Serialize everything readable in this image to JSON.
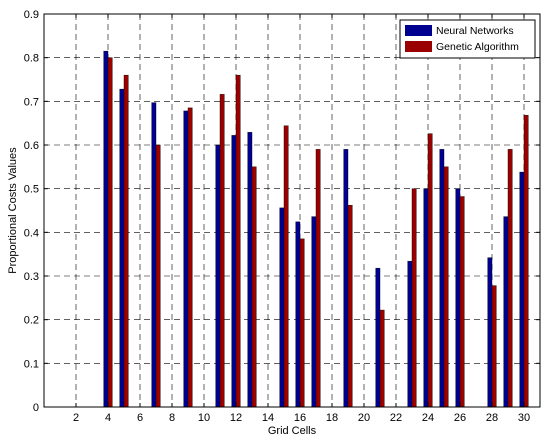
{
  "chart_data": {
    "type": "bar",
    "xlabel": "Grid Cells",
    "ylabel": "Proportional Costs Values",
    "xlim": [
      0,
      31
    ],
    "ylim": [
      0,
      0.9
    ],
    "xticks": [
      2,
      4,
      6,
      8,
      10,
      12,
      14,
      16,
      18,
      20,
      22,
      24,
      26,
      28,
      30
    ],
    "yticks": [
      0,
      0.1,
      0.2,
      0.3,
      0.4,
      0.5,
      0.6,
      0.7,
      0.8,
      0.9
    ],
    "xtick_labels": [
      "2",
      "4",
      "6",
      "8",
      "10",
      "12",
      "14",
      "16",
      "18",
      "20",
      "22",
      "24",
      "26",
      "28",
      "30"
    ],
    "ytick_labels": [
      "0",
      "0.1",
      "0.2",
      "0.3",
      "0.4",
      "0.5",
      "0.6",
      "0.7",
      "0.8",
      "0.9"
    ],
    "grid": true,
    "legend_position": "top-right",
    "x": [
      4,
      5,
      7,
      9,
      11,
      12,
      13,
      15,
      16,
      17,
      19,
      21,
      23,
      24,
      25,
      26,
      28,
      29,
      30
    ],
    "series": [
      {
        "name": "Neural Networks",
        "color": "#000090",
        "values": [
          0.815,
          0.728,
          0.697,
          0.678,
          0.6,
          0.622,
          0.629,
          0.456,
          0.424,
          0.436,
          0.59,
          0.318,
          0.334,
          0.5,
          0.59,
          0.5,
          0.342,
          0.436,
          0.538
        ]
      },
      {
        "name": "Genetic Algorithm",
        "color": "#9a0000",
        "values": [
          0.8,
          0.76,
          0.6,
          0.685,
          0.716,
          0.76,
          0.55,
          0.644,
          0.385,
          0.59,
          0.462,
          0.222,
          0.5,
          0.626,
          0.55,
          0.482,
          0.278,
          0.59,
          0.668
        ]
      }
    ]
  }
}
